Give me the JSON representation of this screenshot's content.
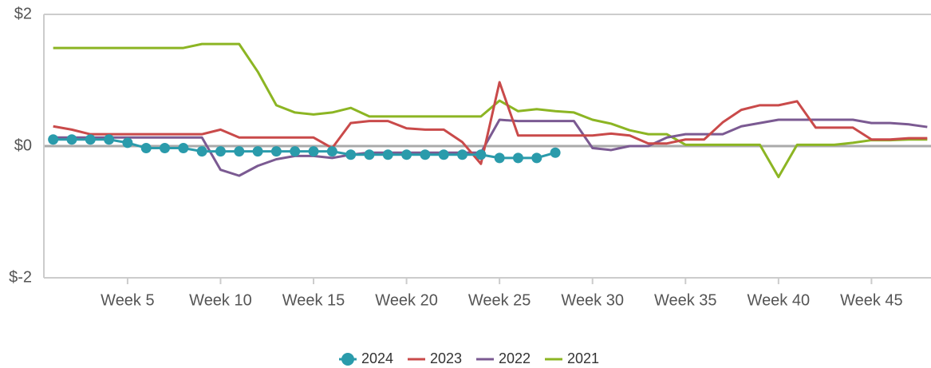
{
  "chart_data": {
    "type": "line",
    "x": [
      1,
      2,
      3,
      4,
      5,
      6,
      7,
      8,
      9,
      10,
      11,
      12,
      13,
      14,
      15,
      16,
      17,
      18,
      19,
      20,
      21,
      22,
      23,
      24,
      25,
      26,
      27,
      28,
      29,
      30,
      31,
      32,
      33,
      34,
      35,
      36,
      37,
      38,
      39,
      40,
      41,
      42,
      43,
      44,
      45,
      46,
      47,
      48
    ],
    "xlim": [
      0.5,
      48.2
    ],
    "xticks": [
      {
        "value": 5,
        "label": "Week 5"
      },
      {
        "value": 10,
        "label": "Week 10"
      },
      {
        "value": 15,
        "label": "Week 15"
      },
      {
        "value": 20,
        "label": "Week 20"
      },
      {
        "value": 25,
        "label": "Week 25"
      },
      {
        "value": 30,
        "label": "Week 30"
      },
      {
        "value": 35,
        "label": "Week 35"
      },
      {
        "value": 40,
        "label": "Week 40"
      },
      {
        "value": 45,
        "label": "Week 45"
      }
    ],
    "ylim": [
      -2,
      2
    ],
    "yticks": [
      {
        "value": -2,
        "label": "$-2"
      },
      {
        "value": 0,
        "label": "$0"
      },
      {
        "value": 2,
        "label": "$2"
      }
    ],
    "grid": true,
    "legend": "bottom",
    "series": [
      {
        "name": "2024",
        "color": "#2a9bab",
        "markers": true,
        "values": [
          0.1,
          0.1,
          0.1,
          0.1,
          0.05,
          -0.03,
          -0.03,
          -0.03,
          -0.08,
          -0.08,
          -0.08,
          -0.08,
          -0.08,
          -0.08,
          -0.08,
          -0.08,
          -0.13,
          -0.13,
          -0.13,
          -0.13,
          -0.13,
          -0.13,
          -0.13,
          -0.13,
          -0.18,
          -0.18,
          -0.18,
          -0.1,
          null,
          null,
          null,
          null,
          null,
          null,
          null,
          null,
          null,
          null,
          null,
          null,
          null,
          null,
          null,
          null,
          null,
          null,
          null,
          null
        ]
      },
      {
        "name": "2023",
        "color": "#c94a4a",
        "values": [
          0.3,
          0.25,
          0.18,
          0.18,
          0.18,
          0.18,
          0.18,
          0.18,
          0.18,
          0.25,
          0.13,
          0.13,
          0.13,
          0.13,
          0.13,
          -0.03,
          0.35,
          0.38,
          0.38,
          0.27,
          0.25,
          0.25,
          0.06,
          -0.27,
          0.97,
          0.16,
          0.16,
          0.16,
          0.16,
          0.16,
          0.19,
          0.16,
          0.04,
          0.04,
          0.1,
          0.1,
          0.36,
          0.55,
          0.62,
          0.62,
          0.68,
          0.28,
          0.28,
          0.28,
          0.1,
          0.1,
          0.12,
          0.12
        ]
      },
      {
        "name": "2022",
        "color": "#7b5a92",
        "values": [
          0.13,
          0.13,
          0.13,
          0.13,
          0.13,
          0.13,
          0.13,
          0.13,
          0.13,
          -0.36,
          -0.45,
          -0.3,
          -0.2,
          -0.15,
          -0.15,
          -0.18,
          -0.13,
          -0.1,
          -0.1,
          -0.1,
          -0.1,
          -0.1,
          -0.1,
          -0.1,
          0.4,
          0.38,
          0.38,
          0.38,
          0.38,
          -0.03,
          -0.06,
          0,
          0,
          0.13,
          0.18,
          0.18,
          0.18,
          0.3,
          0.35,
          0.4,
          0.4,
          0.4,
          0.4,
          0.4,
          0.35,
          0.35,
          0.33,
          0.29
        ]
      },
      {
        "name": "2021",
        "color": "#8cb523",
        "values": [
          1.49,
          1.49,
          1.49,
          1.49,
          1.49,
          1.49,
          1.49,
          1.49,
          1.55,
          1.55,
          1.55,
          1.13,
          0.62,
          0.51,
          0.48,
          0.51,
          0.58,
          0.45,
          0.45,
          0.45,
          0.45,
          0.45,
          0.45,
          0.45,
          0.69,
          0.53,
          0.56,
          0.53,
          0.51,
          0.4,
          0.34,
          0.24,
          0.18,
          0.18,
          0.02,
          0.02,
          0.02,
          0.02,
          0.02,
          -0.47,
          0.02,
          0.02,
          0.02,
          0.05,
          0.09,
          0.09,
          0.1,
          0.1
        ]
      }
    ]
  }
}
